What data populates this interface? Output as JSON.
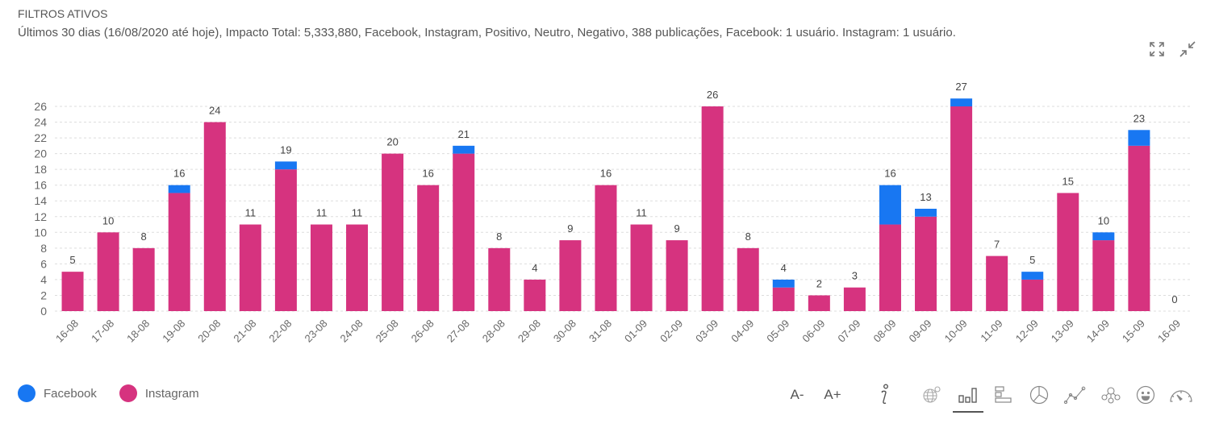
{
  "filters": {
    "title": "FILTROS ATIVOS",
    "text": "Últimos 30 dias (16/08/2020 até hoje), Impacto Total: 5,333,880, Facebook, Instagram, Positivo, Neutro, Negativo, 388 publicações, Facebook: 1 usuário. Instagram: 1 usuário."
  },
  "header_icons": [
    "expand-icon",
    "collapse-icon"
  ],
  "colors": {
    "facebook": "#1877f2",
    "instagram": "#d6337f",
    "grid": "#dddddd",
    "text": "#555555"
  },
  "legend": [
    {
      "label": "Facebook",
      "color": "#1877f2"
    },
    {
      "label": "Instagram",
      "color": "#d6337f"
    }
  ],
  "toolbar": {
    "font_decrease": "A-",
    "font_increase": "A+",
    "icons": [
      "info-icon",
      "globe-icon",
      "bar-chart-icon",
      "horizontal-bar-chart-icon",
      "pie-chart-icon",
      "line-chart-icon",
      "network-icon",
      "sentiment-icon",
      "gauge-icon"
    ],
    "active": "bar-chart-icon"
  },
  "chart_data": {
    "type": "bar",
    "stacked": true,
    "title": "",
    "xlabel": "",
    "ylabel": "",
    "ylim": [
      0,
      26
    ],
    "yticks": [
      0,
      2,
      4,
      6,
      8,
      10,
      12,
      14,
      16,
      18,
      20,
      22,
      24,
      26
    ],
    "grid": true,
    "legend_position": "bottom-left",
    "categories": [
      "16-08",
      "17-08",
      "18-08",
      "19-08",
      "20-08",
      "21-08",
      "22-08",
      "23-08",
      "24-08",
      "25-08",
      "26-08",
      "27-08",
      "28-08",
      "29-08",
      "30-08",
      "31-08",
      "01-09",
      "02-09",
      "03-09",
      "04-09",
      "05-09",
      "06-09",
      "07-09",
      "08-09",
      "09-09",
      "10-09",
      "11-09",
      "12-09",
      "13-09",
      "14-09",
      "15-09",
      "16-09"
    ],
    "series": [
      {
        "name": "Instagram",
        "values": [
          5,
          10,
          8,
          15,
          24,
          11,
          18,
          11,
          11,
          20,
          16,
          20,
          8,
          4,
          9,
          16,
          11,
          9,
          26,
          8,
          3,
          2,
          3,
          11,
          12,
          26,
          7,
          4,
          15,
          9,
          21,
          0
        ]
      },
      {
        "name": "Facebook",
        "values": [
          0,
          0,
          0,
          1,
          0,
          0,
          1,
          0,
          0,
          0,
          0,
          1,
          0,
          0,
          0,
          0,
          0,
          0,
          0,
          0,
          1,
          0,
          0,
          5,
          1,
          1,
          0,
          1,
          0,
          1,
          2,
          0
        ]
      }
    ],
    "totals": [
      5,
      10,
      8,
      16,
      24,
      11,
      19,
      11,
      11,
      20,
      16,
      21,
      8,
      4,
      9,
      16,
      11,
      9,
      26,
      8,
      4,
      2,
      3,
      16,
      13,
      27,
      7,
      5,
      15,
      10,
      23,
      0
    ]
  }
}
